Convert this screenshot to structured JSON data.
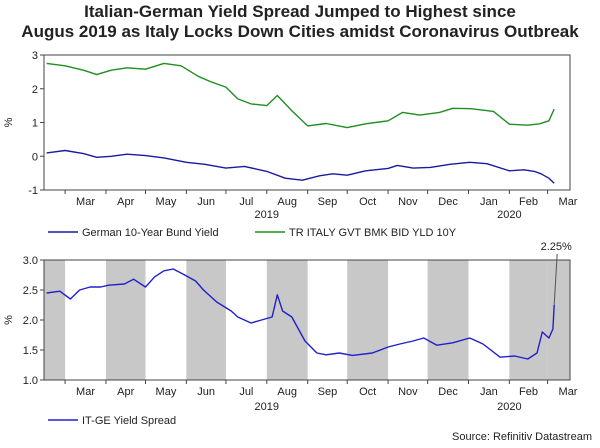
{
  "title_lines": [
    "Italian-German Yield Spread Jumped to Highest since",
    "Augus 2019 as Italy Locks Down Cities amidst Coronavirus Outbreak"
  ],
  "source": "Source: Refinitiv Datastream",
  "colors": {
    "german": "#1a1aa0",
    "italy": "#1f8f1f",
    "spread": "#2020cc",
    "shade": "#c8c8c8"
  },
  "chart_data": [
    {
      "type": "line",
      "ylabel": "%",
      "ylim": [
        -1,
        3
      ],
      "yticks": [
        "-1",
        "0",
        "1",
        "2",
        "3"
      ],
      "ytick_values": [
        -1,
        0,
        1,
        2,
        3
      ],
      "x_start": "2019-02-13",
      "x_end": "2020-03-18",
      "month_labels": [
        "Mar",
        "Apr",
        "May",
        "Jun",
        "Jul",
        "Aug",
        "Sep",
        "Oct",
        "Nov",
        "Dec",
        "Jan",
        "Feb",
        "Mar"
      ],
      "year_labels": [
        "2019",
        "2020"
      ],
      "legend_position": "bottom",
      "series": [
        {
          "name": "German 10-Year Bund Yield",
          "points": [
            [
              "2019-02-15",
              0.1
            ],
            [
              "2019-03-01",
              0.17
            ],
            [
              "2019-03-15",
              0.08
            ],
            [
              "2019-03-25",
              -0.03
            ],
            [
              "2019-04-05",
              0.0
            ],
            [
              "2019-04-17",
              0.06
            ],
            [
              "2019-05-01",
              0.02
            ],
            [
              "2019-05-15",
              -0.05
            ],
            [
              "2019-06-01",
              -0.18
            ],
            [
              "2019-06-15",
              -0.24
            ],
            [
              "2019-07-01",
              -0.35
            ],
            [
              "2019-07-15",
              -0.3
            ],
            [
              "2019-08-01",
              -0.45
            ],
            [
              "2019-08-15",
              -0.65
            ],
            [
              "2019-08-28",
              -0.71
            ],
            [
              "2019-09-10",
              -0.58
            ],
            [
              "2019-09-20",
              -0.52
            ],
            [
              "2019-10-01",
              -0.56
            ],
            [
              "2019-10-15",
              -0.43
            ],
            [
              "2019-11-01",
              -0.36
            ],
            [
              "2019-11-08",
              -0.27
            ],
            [
              "2019-11-20",
              -0.35
            ],
            [
              "2019-12-03",
              -0.33
            ],
            [
              "2019-12-18",
              -0.24
            ],
            [
              "2020-01-02",
              -0.18
            ],
            [
              "2020-01-15",
              -0.22
            ],
            [
              "2020-02-01",
              -0.43
            ],
            [
              "2020-02-12",
              -0.4
            ],
            [
              "2020-02-20",
              -0.45
            ],
            [
              "2020-02-25",
              -0.52
            ],
            [
              "2020-03-02",
              -0.65
            ],
            [
              "2020-03-06",
              -0.8
            ]
          ]
        },
        {
          "name": "TR ITALY GVT BMK BID YLD 10Y",
          "points": [
            [
              "2019-02-15",
              2.75
            ],
            [
              "2019-03-01",
              2.68
            ],
            [
              "2019-03-15",
              2.55
            ],
            [
              "2019-03-25",
              2.42
            ],
            [
              "2019-04-05",
              2.55
            ],
            [
              "2019-04-17",
              2.62
            ],
            [
              "2019-05-01",
              2.58
            ],
            [
              "2019-05-15",
              2.75
            ],
            [
              "2019-05-28",
              2.68
            ],
            [
              "2019-06-10",
              2.37
            ],
            [
              "2019-06-20",
              2.2
            ],
            [
              "2019-07-01",
              2.05
            ],
            [
              "2019-07-10",
              1.7
            ],
            [
              "2019-07-20",
              1.55
            ],
            [
              "2019-08-01",
              1.5
            ],
            [
              "2019-08-09",
              1.8
            ],
            [
              "2019-08-20",
              1.35
            ],
            [
              "2019-09-01",
              0.9
            ],
            [
              "2019-09-15",
              0.97
            ],
            [
              "2019-10-01",
              0.85
            ],
            [
              "2019-10-15",
              0.96
            ],
            [
              "2019-11-01",
              1.05
            ],
            [
              "2019-11-12",
              1.3
            ],
            [
              "2019-11-25",
              1.22
            ],
            [
              "2019-12-10",
              1.3
            ],
            [
              "2019-12-20",
              1.42
            ],
            [
              "2020-01-03",
              1.41
            ],
            [
              "2020-01-20",
              1.33
            ],
            [
              "2020-02-01",
              0.95
            ],
            [
              "2020-02-15",
              0.92
            ],
            [
              "2020-02-24",
              0.96
            ],
            [
              "2020-03-02",
              1.05
            ],
            [
              "2020-03-06",
              1.4
            ]
          ]
        }
      ]
    },
    {
      "type": "line",
      "ylabel": "%",
      "ylim": [
        1.0,
        3.0
      ],
      "yticks": [
        "1.0",
        "1.5",
        "2.0",
        "2.5",
        "3.0"
      ],
      "ytick_values": [
        1.0,
        1.5,
        2.0,
        2.5,
        3.0
      ],
      "x_start": "2019-02-13",
      "x_end": "2020-03-18",
      "month_labels": [
        "Mar",
        "Apr",
        "May",
        "Jun",
        "Jul",
        "Aug",
        "Sep",
        "Oct",
        "Nov",
        "Dec",
        "Jan",
        "Feb",
        "Mar"
      ],
      "year_labels": [
        "2019",
        "2020"
      ],
      "legend_position": "bottom",
      "shaded_periods": [
        [
          "2019-02-13",
          "2019-03-01"
        ],
        [
          "2019-04-01",
          "2019-05-01"
        ],
        [
          "2019-06-01",
          "2019-07-01"
        ],
        [
          "2019-08-01",
          "2019-09-01"
        ],
        [
          "2019-10-01",
          "2019-11-01"
        ],
        [
          "2019-12-01",
          "2020-01-01"
        ],
        [
          "2020-02-01",
          "2020-03-01"
        ],
        [
          "2020-03-01",
          "2020-03-18"
        ]
      ],
      "annotation": {
        "text": "2.25%",
        "date": "2020-03-06",
        "value": 2.25
      },
      "series": [
        {
          "name": "IT-GE Yield Spread",
          "points": [
            [
              "2019-02-15",
              2.45
            ],
            [
              "2019-02-25",
              2.48
            ],
            [
              "2019-03-05",
              2.35
            ],
            [
              "2019-03-12",
              2.5
            ],
            [
              "2019-03-20",
              2.55
            ],
            [
              "2019-03-28",
              2.55
            ],
            [
              "2019-04-03",
              2.58
            ],
            [
              "2019-04-15",
              2.6
            ],
            [
              "2019-04-22",
              2.68
            ],
            [
              "2019-05-01",
              2.55
            ],
            [
              "2019-05-08",
              2.72
            ],
            [
              "2019-05-15",
              2.82
            ],
            [
              "2019-05-22",
              2.85
            ],
            [
              "2019-05-29",
              2.77
            ],
            [
              "2019-06-08",
              2.65
            ],
            [
              "2019-06-14",
              2.5
            ],
            [
              "2019-06-24",
              2.3
            ],
            [
              "2019-07-05",
              2.15
            ],
            [
              "2019-07-10",
              2.05
            ],
            [
              "2019-07-20",
              1.95
            ],
            [
              "2019-07-28",
              2.0
            ],
            [
              "2019-08-05",
              2.05
            ],
            [
              "2019-08-09",
              2.42
            ],
            [
              "2019-08-13",
              2.15
            ],
            [
              "2019-08-20",
              2.05
            ],
            [
              "2019-08-30",
              1.65
            ],
            [
              "2019-09-08",
              1.45
            ],
            [
              "2019-09-15",
              1.42
            ],
            [
              "2019-09-25",
              1.45
            ],
            [
              "2019-10-05",
              1.41
            ],
            [
              "2019-10-20",
              1.45
            ],
            [
              "2019-11-01",
              1.55
            ],
            [
              "2019-11-10",
              1.6
            ],
            [
              "2019-11-20",
              1.65
            ],
            [
              "2019-11-28",
              1.7
            ],
            [
              "2019-12-08",
              1.58
            ],
            [
              "2019-12-20",
              1.62
            ],
            [
              "2020-01-02",
              1.7
            ],
            [
              "2020-01-12",
              1.6
            ],
            [
              "2020-01-25",
              1.38
            ],
            [
              "2020-02-05",
              1.4
            ],
            [
              "2020-02-15",
              1.35
            ],
            [
              "2020-02-22",
              1.45
            ],
            [
              "2020-02-26",
              1.8
            ],
            [
              "2020-03-02",
              1.7
            ],
            [
              "2020-03-05",
              1.85
            ],
            [
              "2020-03-06",
              2.25
            ]
          ]
        }
      ]
    }
  ]
}
